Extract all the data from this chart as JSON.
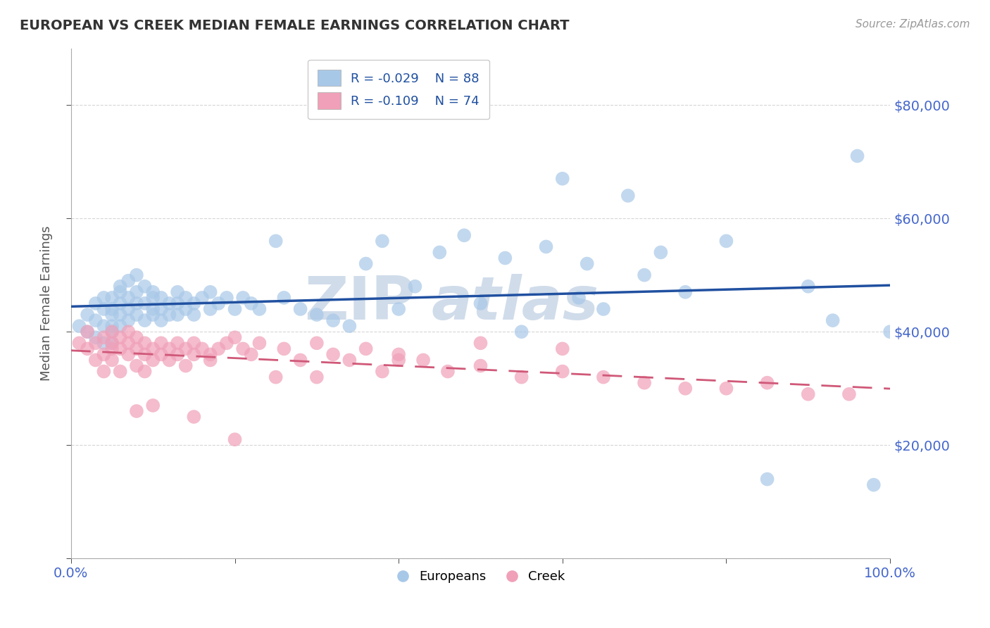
{
  "title": "EUROPEAN VS CREEK MEDIAN FEMALE EARNINGS CORRELATION CHART",
  "source": "Source: ZipAtlas.com",
  "ylabel": "Median Female Earnings",
  "xlim": [
    0,
    1
  ],
  "ylim": [
    0,
    90000
  ],
  "yticks": [
    0,
    20000,
    40000,
    60000,
    80000
  ],
  "right_ytick_labels": [
    "",
    "$20,000",
    "$40,000",
    "$60,000",
    "$80,000"
  ],
  "xtick_positions": [
    0.0,
    0.2,
    0.4,
    0.6,
    0.8,
    1.0
  ],
  "xtick_labels": [
    "0.0%",
    "",
    "",
    "",
    "",
    "100.0%"
  ],
  "european_R": -0.029,
  "european_N": 88,
  "creek_R": -0.109,
  "creek_N": 74,
  "european_color": "#a8c8e8",
  "creek_color": "#f0a0b8",
  "european_line_color": "#2050a0",
  "creek_line_color": "#d05878",
  "background_color": "#ffffff",
  "grid_color": "#cccccc",
  "title_color": "#333333",
  "axis_label_color": "#4466cc",
  "watermark_color": "#d0dcea",
  "european_x": [
    0.01,
    0.02,
    0.02,
    0.03,
    0.03,
    0.03,
    0.04,
    0.04,
    0.04,
    0.04,
    0.05,
    0.05,
    0.05,
    0.05,
    0.05,
    0.05,
    0.06,
    0.06,
    0.06,
    0.06,
    0.06,
    0.07,
    0.07,
    0.07,
    0.07,
    0.08,
    0.08,
    0.08,
    0.08,
    0.09,
    0.09,
    0.09,
    0.1,
    0.1,
    0.1,
    0.1,
    0.11,
    0.11,
    0.11,
    0.12,
    0.12,
    0.13,
    0.13,
    0.13,
    0.14,
    0.14,
    0.15,
    0.15,
    0.16,
    0.17,
    0.17,
    0.18,
    0.19,
    0.2,
    0.21,
    0.22,
    0.23,
    0.25,
    0.26,
    0.28,
    0.3,
    0.32,
    0.34,
    0.36,
    0.38,
    0.4,
    0.42,
    0.45,
    0.48,
    0.5,
    0.53,
    0.55,
    0.58,
    0.6,
    0.63,
    0.65,
    0.68,
    0.72,
    0.75,
    0.8,
    0.85,
    0.9,
    0.93,
    0.96,
    0.98,
    1.0,
    0.7,
    0.62
  ],
  "european_y": [
    41000,
    40000,
    43000,
    45000,
    42000,
    39000,
    46000,
    44000,
    41000,
    38000,
    43000,
    46000,
    41000,
    38000,
    44000,
    40000,
    48000,
    45000,
    47000,
    43000,
    41000,
    49000,
    46000,
    44000,
    42000,
    50000,
    47000,
    45000,
    43000,
    48000,
    45000,
    42000,
    47000,
    44000,
    46000,
    43000,
    46000,
    44000,
    42000,
    45000,
    43000,
    47000,
    45000,
    43000,
    46000,
    44000,
    45000,
    43000,
    46000,
    47000,
    44000,
    45000,
    46000,
    44000,
    46000,
    45000,
    44000,
    56000,
    46000,
    44000,
    43000,
    42000,
    41000,
    52000,
    56000,
    44000,
    48000,
    54000,
    57000,
    45000,
    53000,
    40000,
    55000,
    67000,
    52000,
    44000,
    64000,
    54000,
    47000,
    56000,
    14000,
    48000,
    42000,
    71000,
    13000,
    40000,
    50000,
    46000
  ],
  "creek_x": [
    0.01,
    0.02,
    0.02,
    0.03,
    0.03,
    0.04,
    0.04,
    0.04,
    0.05,
    0.05,
    0.05,
    0.05,
    0.06,
    0.06,
    0.06,
    0.07,
    0.07,
    0.07,
    0.08,
    0.08,
    0.08,
    0.09,
    0.09,
    0.09,
    0.1,
    0.1,
    0.11,
    0.11,
    0.12,
    0.12,
    0.13,
    0.13,
    0.14,
    0.14,
    0.15,
    0.15,
    0.16,
    0.17,
    0.17,
    0.18,
    0.19,
    0.2,
    0.21,
    0.22,
    0.23,
    0.25,
    0.26,
    0.28,
    0.3,
    0.32,
    0.34,
    0.36,
    0.38,
    0.4,
    0.43,
    0.46,
    0.5,
    0.55,
    0.6,
    0.65,
    0.7,
    0.75,
    0.8,
    0.85,
    0.9,
    0.95,
    0.6,
    0.5,
    0.4,
    0.3,
    0.2,
    0.15,
    0.1,
    0.08
  ],
  "creek_y": [
    38000,
    37000,
    40000,
    35000,
    38000,
    39000,
    36000,
    33000,
    37000,
    40000,
    38000,
    35000,
    39000,
    37000,
    33000,
    40000,
    38000,
    36000,
    37000,
    34000,
    39000,
    38000,
    36000,
    33000,
    37000,
    35000,
    38000,
    36000,
    37000,
    35000,
    38000,
    36000,
    37000,
    34000,
    36000,
    38000,
    37000,
    36000,
    35000,
    37000,
    38000,
    39000,
    37000,
    36000,
    38000,
    32000,
    37000,
    35000,
    38000,
    36000,
    35000,
    37000,
    33000,
    36000,
    35000,
    33000,
    34000,
    32000,
    33000,
    32000,
    31000,
    30000,
    30000,
    31000,
    29000,
    29000,
    37000,
    38000,
    35000,
    32000,
    21000,
    25000,
    27000,
    26000
  ]
}
